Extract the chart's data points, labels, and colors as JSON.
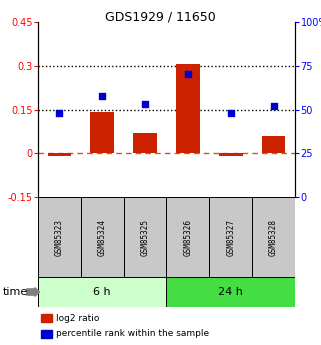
{
  "title": "GDS1929 / 11650",
  "samples": [
    "GSM85323",
    "GSM85324",
    "GSM85325",
    "GSM85326",
    "GSM85327",
    "GSM85328"
  ],
  "log2_ratio": [
    -0.01,
    0.14,
    0.07,
    0.305,
    -0.01,
    0.06
  ],
  "percentile_rank": [
    48,
    58,
    53,
    70,
    48,
    52
  ],
  "groups": [
    {
      "label": "6 h",
      "indices": [
        0,
        1,
        2
      ],
      "color": "#ccffcc"
    },
    {
      "label": "24 h",
      "indices": [
        3,
        4,
        5
      ],
      "color": "#44dd44"
    }
  ],
  "ylim_left": [
    -0.15,
    0.45
  ],
  "ylim_right": [
    0,
    100
  ],
  "yticks_left": [
    -0.15,
    0,
    0.15,
    0.3,
    0.45
  ],
  "yticks_right": [
    0,
    25,
    50,
    75,
    100
  ],
  "hline_dotted": [
    0.15,
    0.3
  ],
  "hline_dashed": 0.0,
  "bar_color": "#cc2200",
  "dot_color": "#0000cc",
  "bar_width": 0.55,
  "group_bg_color": "#c8c8c8",
  "time_label": "time",
  "legend_items": [
    "log2 ratio",
    "percentile rank within the sample"
  ],
  "legend_colors": [
    "#cc2200",
    "#0000cc"
  ]
}
